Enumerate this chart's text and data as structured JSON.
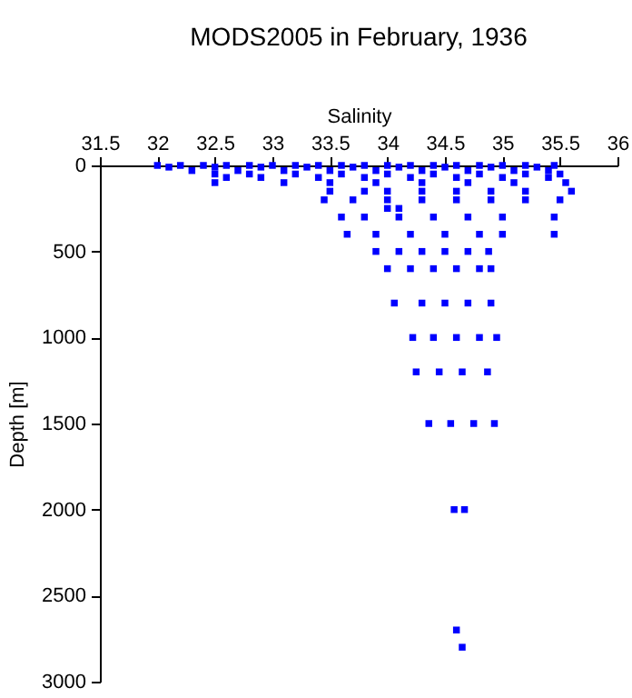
{
  "chart_data": {
    "type": "scatter",
    "title": "MODS2005 in February, 1936",
    "xlabel": "Salinity",
    "ylabel": "Depth [m]",
    "x": [
      32.0,
      32.2,
      32.4,
      32.6,
      32.8,
      33.0,
      33.2,
      33.4,
      33.6,
      33.8,
      34.0,
      34.2,
      34.4,
      34.6,
      34.8,
      35.0,
      35.2,
      35.45,
      32.1,
      32.5,
      32.9,
      33.3,
      33.7,
      34.1,
      34.5,
      34.9,
      35.3,
      32.3,
      32.7,
      33.1,
      33.5,
      33.9,
      34.3,
      34.7,
      35.1,
      35.4,
      32.5,
      32.8,
      33.2,
      33.6,
      34.0,
      34.4,
      34.8,
      35.2,
      35.5,
      32.6,
      32.9,
      33.4,
      33.8,
      34.2,
      34.6,
      35.0,
      35.4,
      32.5,
      33.1,
      33.5,
      33.9,
      34.3,
      34.7,
      35.1,
      35.55,
      33.5,
      33.8,
      34.0,
      34.3,
      34.6,
      34.9,
      35.2,
      35.6,
      33.45,
      33.7,
      34.0,
      34.3,
      34.6,
      34.9,
      35.2,
      35.5,
      34.0,
      34.1,
      33.6,
      33.8,
      34.1,
      34.4,
      34.7,
      35.0,
      35.45,
      33.65,
      33.9,
      34.2,
      34.5,
      34.8,
      35.0,
      35.45,
      33.9,
      34.1,
      34.3,
      34.5,
      34.7,
      34.88,
      34.0,
      34.2,
      34.4,
      34.6,
      34.8,
      34.9,
      34.06,
      34.3,
      34.5,
      34.7,
      34.9,
      34.22,
      34.4,
      34.6,
      34.8,
      34.95,
      34.25,
      34.45,
      34.65,
      34.87,
      34.36,
      34.55,
      34.75,
      34.93,
      34.58,
      34.67,
      34.6,
      34.65
    ],
    "values": [
      0,
      0,
      0,
      0,
      0,
      0,
      0,
      0,
      0,
      0,
      0,
      0,
      0,
      0,
      0,
      0,
      0,
      0,
      10,
      10,
      10,
      10,
      10,
      10,
      10,
      10,
      10,
      30,
      30,
      30,
      30,
      30,
      30,
      30,
      30,
      30,
      50,
      50,
      50,
      50,
      50,
      50,
      50,
      50,
      50,
      70,
      70,
      70,
      70,
      70,
      70,
      70,
      70,
      100,
      100,
      100,
      100,
      100,
      100,
      100,
      100,
      150,
      150,
      150,
      150,
      150,
      150,
      150,
      150,
      200,
      200,
      200,
      200,
      200,
      200,
      200,
      200,
      250,
      250,
      300,
      300,
      300,
      300,
      300,
      300,
      300,
      400,
      400,
      400,
      400,
      400,
      400,
      400,
      500,
      500,
      500,
      500,
      500,
      500,
      600,
      600,
      600,
      600,
      600,
      600,
      800,
      800,
      800,
      800,
      800,
      1000,
      1000,
      1000,
      1000,
      1000,
      1200,
      1200,
      1200,
      1200,
      1500,
      1500,
      1500,
      1500,
      2000,
      2000,
      2700,
      2800
    ],
    "color": "#0000ff",
    "marker": "square",
    "xlim": [
      31.5,
      36
    ],
    "xticks": [
      31.5,
      32,
      32.5,
      33,
      33.5,
      34,
      34.5,
      35,
      35.5,
      36
    ],
    "ylim": [
      3000,
      0
    ],
    "yticks": [
      0,
      500,
      1000,
      1500,
      2000,
      2500,
      3000
    ],
    "grid": false
  }
}
